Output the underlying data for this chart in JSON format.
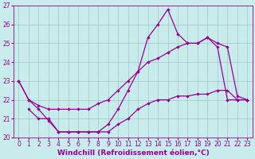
{
  "xlabel": "Windchill (Refroidissement éolien,°C)",
  "bg_color": "#c8ecec",
  "line_color": "#990099",
  "xlim": [
    -0.5,
    23.5
  ],
  "ylim": [
    20,
    27
  ],
  "yticks": [
    20,
    21,
    22,
    23,
    24,
    25,
    26,
    27
  ],
  "xticks": [
    0,
    1,
    2,
    3,
    4,
    5,
    6,
    7,
    8,
    9,
    10,
    11,
    12,
    13,
    14,
    15,
    16,
    17,
    18,
    19,
    20,
    21,
    22,
    23
  ],
  "curve1_x": [
    0,
    1,
    2,
    3,
    4,
    5,
    6,
    7,
    8,
    9,
    10,
    11,
    12,
    13,
    14,
    15,
    16,
    17,
    18,
    19,
    20,
    21,
    22,
    23
  ],
  "curve1_y": [
    23.0,
    22.0,
    21.5,
    20.9,
    20.3,
    20.3,
    20.3,
    20.3,
    20.3,
    20.7,
    21.5,
    22.5,
    23.5,
    25.3,
    26.0,
    26.8,
    25.5,
    25.0,
    25.0,
    25.3,
    24.8,
    22.0,
    22.0,
    22.0
  ],
  "curve2_x": [
    0,
    1,
    2,
    3,
    4,
    5,
    6,
    7,
    8,
    9,
    10,
    11,
    12,
    13,
    14,
    15,
    16,
    17,
    18,
    19,
    20,
    21,
    22,
    23
  ],
  "curve2_y": [
    23.0,
    22.0,
    21.7,
    21.5,
    21.5,
    21.5,
    21.5,
    21.5,
    21.8,
    22.0,
    22.5,
    23.0,
    23.5,
    24.0,
    24.2,
    24.5,
    24.8,
    25.0,
    25.0,
    25.3,
    25.0,
    24.8,
    22.2,
    22.0
  ],
  "curve3_x": [
    1,
    2,
    3,
    4,
    5,
    6,
    7,
    8,
    9,
    10,
    11,
    12,
    13,
    14,
    15,
    16,
    17,
    18,
    19,
    20,
    21,
    22,
    23
  ],
  "curve3_y": [
    21.5,
    21.0,
    21.0,
    20.3,
    20.3,
    20.3,
    20.3,
    20.3,
    20.3,
    20.7,
    21.0,
    21.5,
    21.8,
    22.0,
    22.0,
    22.2,
    22.2,
    22.3,
    22.3,
    22.5,
    22.5,
    22.0,
    22.0
  ],
  "grid_color": "#9ababa",
  "tick_fontsize": 5.5,
  "label_fontsize": 6.5
}
